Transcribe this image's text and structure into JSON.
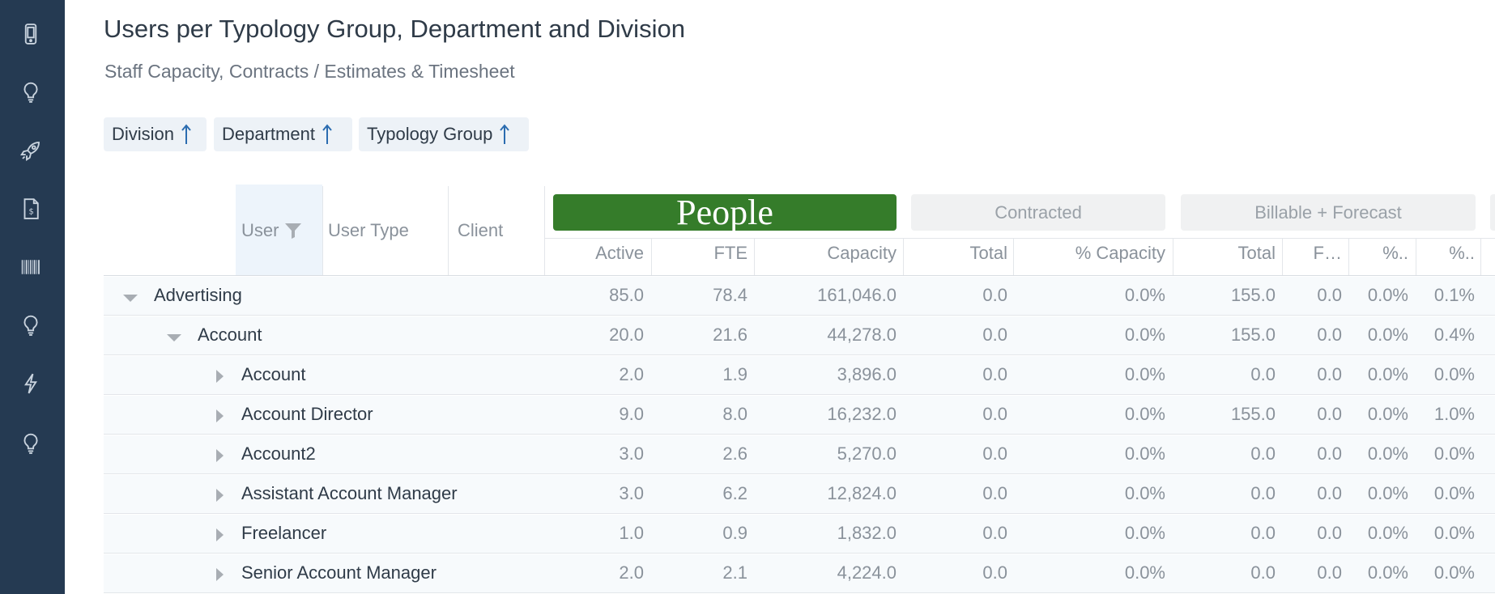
{
  "sidebar": {
    "icons": [
      "mobile-icon",
      "lightbulb-icon",
      "rocket-icon",
      "invoice-icon",
      "barcode-icon",
      "lightbulb-icon",
      "lightning-icon",
      "lightbulb-icon"
    ]
  },
  "header": {
    "title": "Users per Typology Group, Department and Division",
    "subtitle": "Staff Capacity, Contracts / Estimates & Timesheet"
  },
  "sort_chips": [
    {
      "label": "Division"
    },
    {
      "label": "Department"
    },
    {
      "label": "Typology Group"
    }
  ],
  "table": {
    "dimension_headers": {
      "user": "User",
      "user_type": "User Type",
      "client": "Client"
    },
    "groups": {
      "people": "People",
      "contracted": "Contracted",
      "billable_forecast": "Billable + Forecast"
    },
    "columns": [
      "Active",
      "FTE",
      "Capacity",
      "Total",
      "% Capacity",
      "Total",
      "F…",
      "%..",
      "%.."
    ],
    "rows": [
      {
        "level": 0,
        "expanded": true,
        "label": "Advertising",
        "values": [
          "85.0",
          "78.4",
          "161,046.0",
          "0.0",
          "0.0%",
          "155.0",
          "0.0",
          "0.0%",
          "0.1%"
        ]
      },
      {
        "level": 1,
        "expanded": true,
        "label": "Account",
        "values": [
          "20.0",
          "21.6",
          "44,278.0",
          "0.0",
          "0.0%",
          "155.0",
          "0.0",
          "0.0%",
          "0.4%"
        ]
      },
      {
        "level": 2,
        "expanded": false,
        "label": "Account",
        "values": [
          "2.0",
          "1.9",
          "3,896.0",
          "0.0",
          "0.0%",
          "0.0",
          "0.0",
          "0.0%",
          "0.0%"
        ]
      },
      {
        "level": 2,
        "expanded": false,
        "label": "Account Director",
        "values": [
          "9.0",
          "8.0",
          "16,232.0",
          "0.0",
          "0.0%",
          "155.0",
          "0.0",
          "0.0%",
          "1.0%"
        ]
      },
      {
        "level": 2,
        "expanded": false,
        "label": "Account2",
        "values": [
          "3.0",
          "2.6",
          "5,270.0",
          "0.0",
          "0.0%",
          "0.0",
          "0.0",
          "0.0%",
          "0.0%"
        ]
      },
      {
        "level": 2,
        "expanded": false,
        "label": "Assistant Account Manager",
        "values": [
          "3.0",
          "6.2",
          "12,824.0",
          "0.0",
          "0.0%",
          "0.0",
          "0.0",
          "0.0%",
          "0.0%"
        ]
      },
      {
        "level": 2,
        "expanded": false,
        "label": "Freelancer",
        "values": [
          "1.0",
          "0.9",
          "1,832.0",
          "0.0",
          "0.0%",
          "0.0",
          "0.0",
          "0.0%",
          "0.0%"
        ]
      },
      {
        "level": 2,
        "expanded": false,
        "label": "Senior Account Manager",
        "values": [
          "2.0",
          "2.1",
          "4,224.0",
          "0.0",
          "0.0%",
          "0.0",
          "0.0",
          "0.0%",
          "0.0%"
        ]
      }
    ]
  }
}
